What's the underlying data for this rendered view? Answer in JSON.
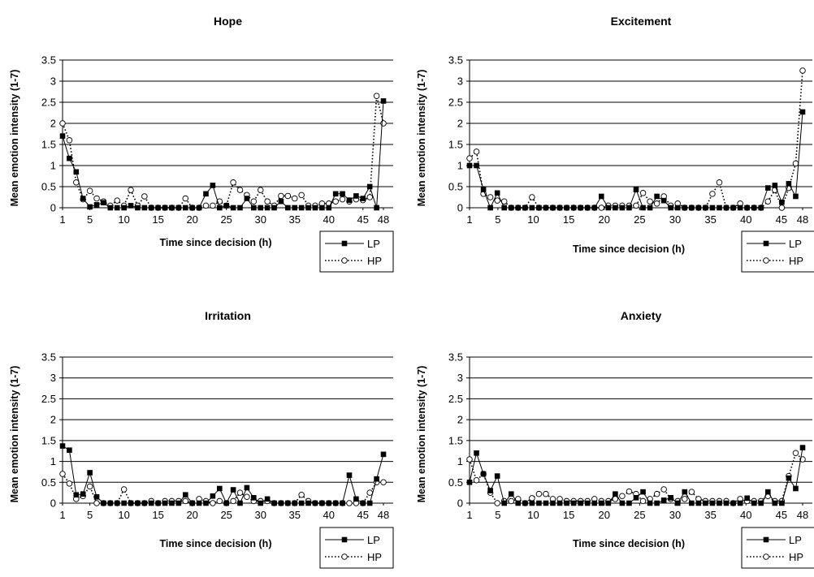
{
  "chart_data": [
    {
      "type": "line",
      "title": "Hope",
      "xlabel": "Time since decision (h)",
      "ylabel": "Mean emotion intensity (1-7)",
      "xlim": [
        1,
        48
      ],
      "ylim": [
        0,
        3.5
      ],
      "yticks": [
        "0",
        "0.5",
        "1",
        "1.5",
        "2",
        "2.5",
        "3",
        "3.5"
      ],
      "xticks": [
        "1",
        "5",
        "10",
        "15",
        "20",
        "25",
        "30",
        "35",
        "40",
        "45",
        "48"
      ],
      "grid": true,
      "legend": "bottom-right",
      "series": [
        {
          "name": "LP",
          "values": [
            1.7,
            1.17,
            0.85,
            0.22,
            0.02,
            0.07,
            0.12,
            0.0,
            0.0,
            0.0,
            0.05,
            0.0,
            0.0,
            0.0,
            0.0,
            0.0,
            0.0,
            0.0,
            0.0,
            0.0,
            0.0,
            0.33,
            0.53,
            0.0,
            0.05,
            0.0,
            0.0,
            0.22,
            0.0,
            0.0,
            0.0,
            0.0,
            0.15,
            0.0,
            0.0,
            0.0,
            0.0,
            0.0,
            0.0,
            0.0,
            0.33,
            0.33,
            0.18,
            0.28,
            0.22,
            0.5,
            0.0,
            2.53
          ]
        },
        {
          "name": "HP",
          "values": [
            2.0,
            1.6,
            0.6,
            0.2,
            0.4,
            0.22,
            0.15,
            0.05,
            0.17,
            0.05,
            0.42,
            0.05,
            0.27,
            0.0,
            0.0,
            0.0,
            0.0,
            0.0,
            0.22,
            0.0,
            0.0,
            0.05,
            0.05,
            0.15,
            0.05,
            0.6,
            0.42,
            0.3,
            0.15,
            0.42,
            0.15,
            0.05,
            0.28,
            0.28,
            0.22,
            0.3,
            0.05,
            0.05,
            0.1,
            0.1,
            0.15,
            0.2,
            0.15,
            0.2,
            0.18,
            0.25,
            2.65,
            2.0
          ]
        }
      ]
    },
    {
      "type": "line",
      "title": "Excitement",
      "xlabel": "Time since decision (h)",
      "ylabel": "Mean emotion intensity (1-7)",
      "xlim": [
        1,
        48
      ],
      "ylim": [
        0,
        3.5
      ],
      "yticks": [
        "0",
        "0.5",
        "1",
        "1.5",
        "2",
        "2.5",
        "3",
        "3.5"
      ],
      "xticks": [
        "1",
        "5",
        "10",
        "15",
        "20",
        "25",
        "30",
        "35",
        "40",
        "45",
        "48"
      ],
      "grid": true,
      "legend": "bottom-right",
      "series": [
        {
          "name": "LP",
          "values": [
            1.0,
            1.0,
            0.43,
            0.0,
            0.35,
            0.0,
            0.0,
            0.0,
            0.0,
            0.0,
            0.0,
            0.0,
            0.0,
            0.0,
            0.0,
            0.0,
            0.0,
            0.0,
            0.0,
            0.27,
            0.0,
            0.0,
            0.0,
            0.0,
            0.43,
            0.0,
            0.0,
            0.27,
            0.17,
            0.0,
            0.0,
            0.0,
            0.0,
            0.0,
            0.0,
            0.0,
            0.0,
            0.0,
            0.0,
            0.0,
            0.0,
            0.0,
            0.0,
            0.47,
            0.53,
            0.13,
            0.57,
            0.27,
            2.27
          ]
        },
        {
          "name": "HP",
          "values": [
            1.17,
            1.33,
            0.33,
            0.25,
            0.17,
            0.15,
            0.0,
            0.0,
            0.0,
            0.25,
            0.0,
            0.0,
            0.0,
            0.0,
            0.0,
            0.0,
            0.0,
            0.0,
            0.0,
            0.0,
            0.05,
            0.05,
            0.05,
            0.05,
            0.05,
            0.35,
            0.15,
            0.1,
            0.27,
            0.05,
            0.1,
            0.0,
            0.0,
            0.0,
            0.0,
            0.33,
            0.6,
            0.0,
            0.0,
            0.1,
            0.0,
            0.0,
            0.0,
            0.15,
            0.42,
            0.0,
            0.47,
            1.05,
            3.25
          ]
        }
      ]
    },
    {
      "type": "line",
      "title": "Irritation",
      "xlabel": "Time since decision (h)",
      "ylabel": "Mean emotion intensity (1-7)",
      "xlim": [
        1,
        48
      ],
      "ylim": [
        0,
        3.5
      ],
      "yticks": [
        "0",
        "0.5",
        "1",
        "1.5",
        "2",
        "2.5",
        "3",
        "3.5"
      ],
      "xticks": [
        "1",
        "5",
        "10",
        "15",
        "20",
        "25",
        "30",
        "35",
        "40",
        "45",
        "48"
      ],
      "grid": true,
      "legend": "bottom-right",
      "series": [
        {
          "name": "LP",
          "values": [
            1.37,
            1.27,
            0.2,
            0.22,
            0.73,
            0.15,
            0.0,
            0.0,
            0.0,
            0.0,
            0.0,
            0.0,
            0.0,
            0.0,
            0.0,
            0.0,
            0.0,
            0.0,
            0.2,
            0.0,
            0.0,
            0.0,
            0.17,
            0.35,
            0.0,
            0.32,
            0.0,
            0.37,
            0.13,
            0.0,
            0.1,
            0.0,
            0.0,
            0.0,
            0.0,
            0.0,
            0.0,
            0.0,
            0.0,
            0.0,
            0.0,
            0.0,
            0.67,
            0.1,
            0.0,
            0.0,
            0.58,
            1.17
          ]
        },
        {
          "name": "HP",
          "values": [
            0.7,
            0.47,
            0.1,
            0.17,
            0.4,
            0.0,
            0.0,
            0.0,
            0.0,
            0.33,
            0.0,
            0.0,
            0.0,
            0.05,
            0.0,
            0.05,
            0.05,
            0.05,
            0.05,
            0.0,
            0.1,
            0.05,
            0.0,
            0.05,
            0.0,
            0.05,
            0.25,
            0.15,
            0.05,
            0.05,
            0.05,
            0.0,
            0.0,
            0.0,
            0.0,
            0.2,
            0.05,
            0.0,
            0.0,
            0.0,
            0.0,
            0.0,
            0.0,
            0.0,
            0.0,
            0.25,
            0.5,
            0.5
          ]
        }
      ]
    },
    {
      "type": "line",
      "title": "Anxiety",
      "xlabel": "Time since decision (h)",
      "ylabel": "Mean emotion intensity (1-7)",
      "xlim": [
        1,
        48
      ],
      "ylim": [
        0,
        3.5
      ],
      "yticks": [
        "0",
        "0.5",
        "1",
        "1.5",
        "2",
        "2.5",
        "3",
        "3.5"
      ],
      "xticks": [
        "1",
        "5",
        "10",
        "15",
        "20",
        "25",
        "30",
        "35",
        "40",
        "45",
        "48"
      ],
      "grid": true,
      "legend": "bottom-right",
      "series": [
        {
          "name": "LP",
          "values": [
            0.5,
            1.2,
            0.7,
            0.3,
            0.65,
            0.0,
            0.22,
            0.0,
            0.0,
            0.0,
            0.0,
            0.0,
            0.0,
            0.0,
            0.0,
            0.0,
            0.0,
            0.0,
            0.0,
            0.0,
            0.0,
            0.22,
            0.0,
            0.0,
            0.13,
            0.27,
            0.0,
            0.0,
            0.07,
            0.13,
            0.0,
            0.27,
            0.0,
            0.0,
            0.0,
            0.0,
            0.0,
            0.0,
            0.0,
            0.0,
            0.12,
            0.0,
            0.0,
            0.27,
            0.0,
            0.0,
            0.6,
            0.35,
            1.33
          ]
        },
        {
          "name": "HP",
          "values": [
            1.05,
            0.55,
            0.7,
            0.25,
            0.0,
            0.05,
            0.05,
            0.1,
            0.0,
            0.12,
            0.22,
            0.22,
            0.1,
            0.1,
            0.05,
            0.05,
            0.05,
            0.05,
            0.1,
            0.05,
            0.05,
            0.1,
            0.17,
            0.28,
            0.22,
            0.05,
            0.1,
            0.22,
            0.33,
            0.1,
            0.05,
            0.1,
            0.27,
            0.1,
            0.05,
            0.05,
            0.05,
            0.05,
            0.0,
            0.1,
            0.05,
            0.05,
            0.05,
            0.17,
            0.05,
            0.05,
            0.65,
            1.2,
            1.05
          ]
        }
      ]
    }
  ]
}
